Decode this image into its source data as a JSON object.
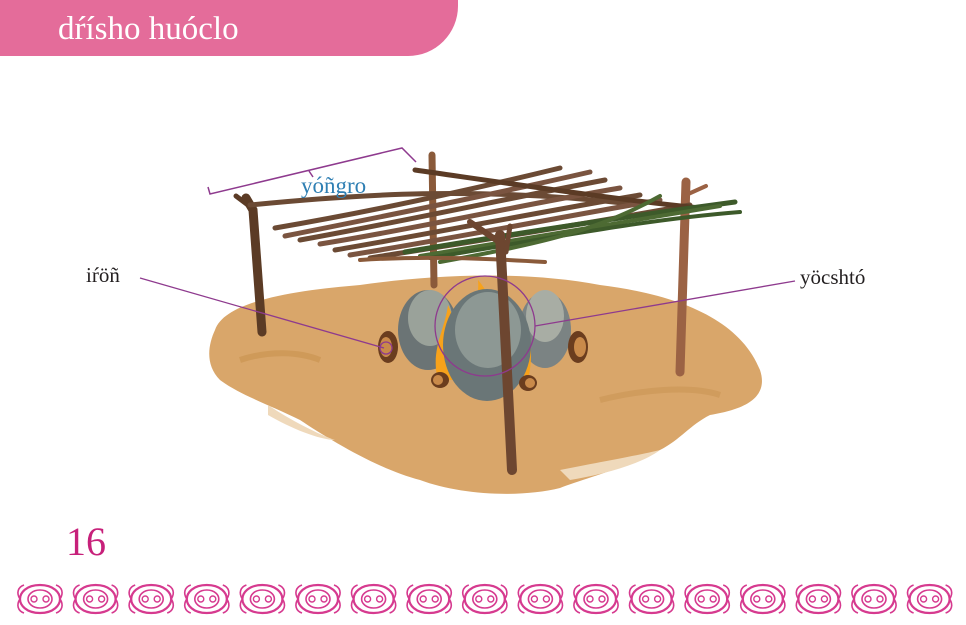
{
  "header": {
    "title": "dŕísho huóclo"
  },
  "labels": {
    "roof": "yóñgro",
    "log": "iŕöñ",
    "fire": "yöcshtó"
  },
  "page": {
    "number": "16"
  },
  "colors": {
    "header_bg": "#e46c9a",
    "page_number": "#c7207a",
    "roof_label": "#2f7fb3",
    "leader_line": "#8e3a8e",
    "ground": "#d9a66a",
    "border_motif": "#d63a8f"
  },
  "decor": {
    "border_motif_count": 17,
    "border_motif_icon": "ornament-motif-icon"
  }
}
